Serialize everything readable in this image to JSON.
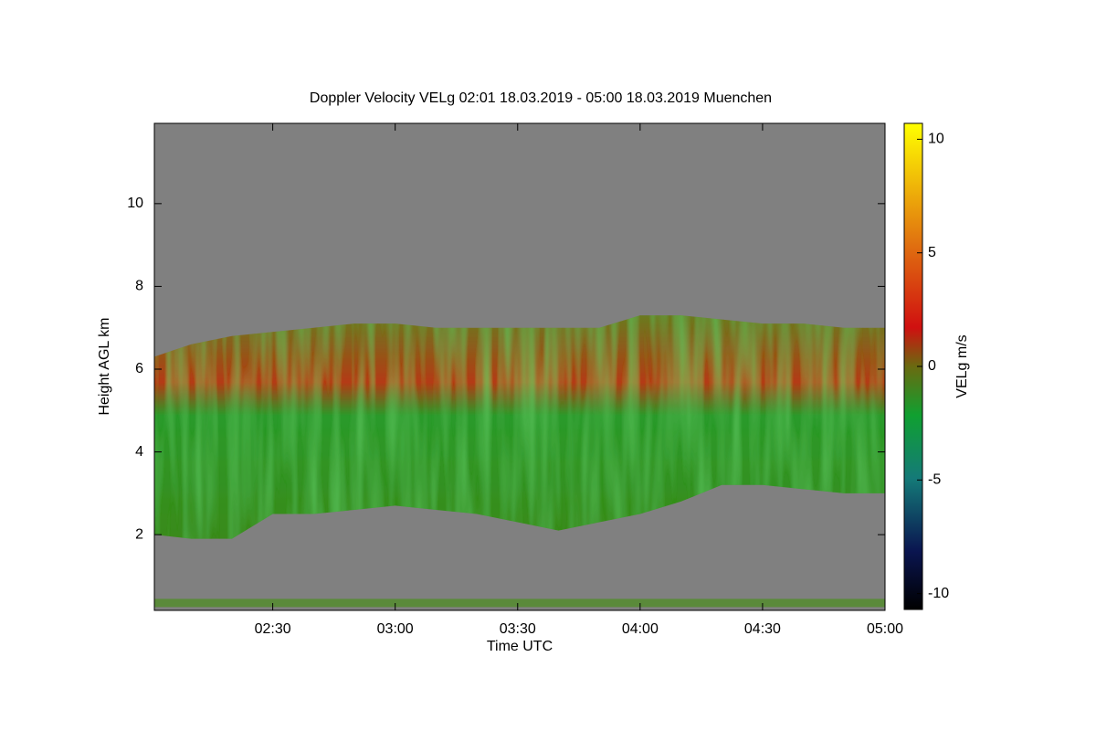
{
  "chart_data": {
    "type": "heatmap",
    "title": "Doppler Velocity VELg   02:01 18.03.2019 - 05:00 18.03.2019 Muenchen",
    "x_label": "Time UTC",
    "y_label": "Height AGL km",
    "colorbar_label": "VELg m/s",
    "background": "#808080",
    "xlim": [
      121,
      300
    ],
    "xticks": [
      {
        "value": 150,
        "label": "02:30"
      },
      {
        "value": 180,
        "label": "03:00"
      },
      {
        "value": 210,
        "label": "03:30"
      },
      {
        "value": 240,
        "label": "04:00"
      },
      {
        "value": 270,
        "label": "04:30"
      },
      {
        "value": 300,
        "label": "05:00"
      }
    ],
    "ylim": [
      0.17,
      11.94
    ],
    "yticks": [
      2,
      4,
      6,
      8,
      10
    ],
    "clim": [
      -10.7,
      10.7
    ],
    "cticks": [
      10,
      5,
      0,
      -5,
      -10
    ],
    "series": [
      {
        "color": "#3f8f1f",
        "x": [
          121,
          130,
          140,
          150,
          160,
          170,
          180,
          190,
          200,
          210,
          220,
          230,
          240,
          250,
          260,
          270,
          280,
          290,
          300
        ],
        "top": [
          6.3,
          6.6,
          6.8,
          6.9,
          7.0,
          7.1,
          7.1,
          7.0,
          7.0,
          7.0,
          7.0,
          7.0,
          7.3,
          7.3,
          7.2,
          7.1,
          7.1,
          7.0,
          7.0
        ],
        "base": [
          2.0,
          1.9,
          1.9,
          2.5,
          2.5,
          2.6,
          2.7,
          2.6,
          2.5,
          2.3,
          2.1,
          2.3,
          2.5,
          2.8,
          3.2,
          3.2,
          3.1,
          3.0,
          3.0
        ]
      },
      {
        "color": "#5a8a3a",
        "x": [
          121,
          300
        ],
        "top": [
          0.45,
          0.45
        ],
        "base": [
          0.25,
          0.25
        ]
      }
    ]
  }
}
